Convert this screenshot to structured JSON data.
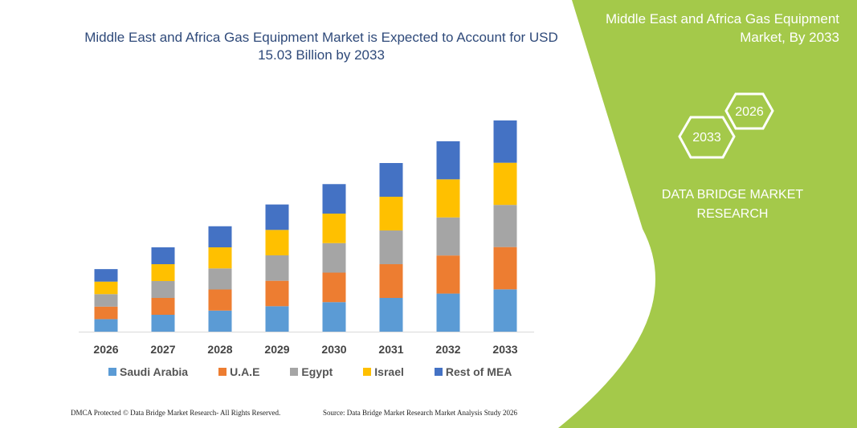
{
  "title": "Middle East and Africa Gas Equipment Market is Expected to Account for USD 15.03 Billion by 2033",
  "side_panel": {
    "title_line1": "Middle East and Africa Gas Equipment",
    "title_line2": "Market, By 2033",
    "hex_years": [
      "2033",
      "2026"
    ],
    "brand_line1": "DATA BRIDGE MARKET",
    "brand_line2": "RESEARCH",
    "color": "#a4c94a"
  },
  "footer": {
    "left": "DMCA Protected © Data Bridge Market Research- All Rights Reserved.",
    "right": "Source: Data Bridge Market Research Market Analysis Study 2026"
  },
  "chart_data": {
    "type": "bar",
    "stacked": true,
    "categories": [
      "2026",
      "2027",
      "2028",
      "2029",
      "2030",
      "2031",
      "2032",
      "2033"
    ],
    "series": [
      {
        "name": "Saudi Arabia",
        "color": "#5b9bd5",
        "values": [
          0.89,
          1.2,
          1.5,
          1.81,
          2.1,
          2.4,
          2.71,
          3.01
        ]
      },
      {
        "name": "U.A.E",
        "color": "#ed7d31",
        "values": [
          0.89,
          1.2,
          1.5,
          1.81,
          2.1,
          2.4,
          2.71,
          3.01
        ]
      },
      {
        "name": "Egypt",
        "color": "#a5a5a5",
        "values": [
          0.89,
          1.2,
          1.5,
          1.81,
          2.1,
          2.4,
          2.71,
          3.0
        ]
      },
      {
        "name": "Israel",
        "color": "#ffc000",
        "values": [
          0.89,
          1.2,
          1.5,
          1.81,
          2.1,
          2.4,
          2.71,
          3.0
        ]
      },
      {
        "name": "Rest of MEA",
        "color": "#4472c4",
        "values": [
          0.89,
          1.2,
          1.5,
          1.81,
          2.1,
          2.4,
          2.71,
          3.01
        ]
      }
    ],
    "ylim": [
      0,
      15.03
    ],
    "grid": false,
    "legend_position": "bottom",
    "xlabel": "",
    "ylabel": ""
  }
}
